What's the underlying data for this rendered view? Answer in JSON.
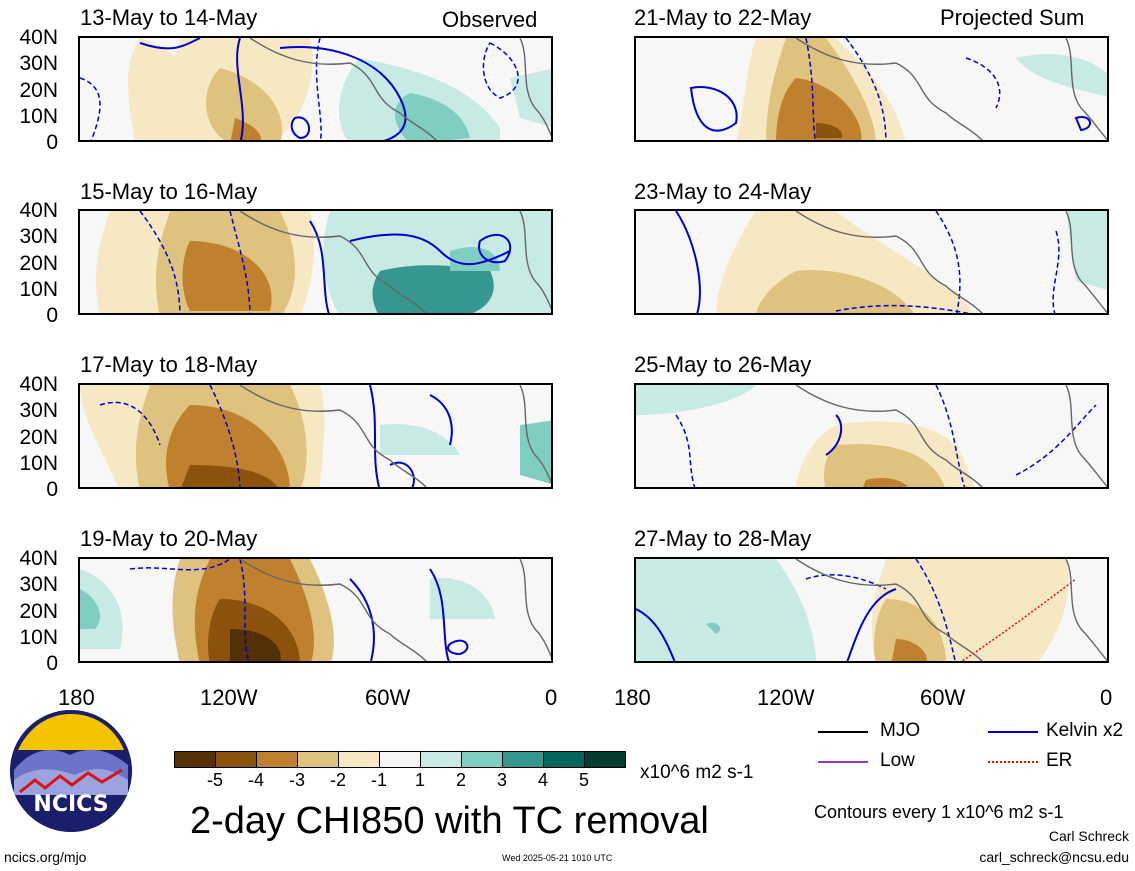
{
  "panels": [
    {
      "title": "13-May to 14-May",
      "corner": "Observed"
    },
    {
      "title": "21-May to 22-May",
      "corner": "Projected Sum"
    },
    {
      "title": "15-May to 16-May",
      "corner": ""
    },
    {
      "title": "23-May to 24-May",
      "corner": ""
    },
    {
      "title": "17-May to 18-May",
      "corner": ""
    },
    {
      "title": "25-May to 26-May",
      "corner": ""
    },
    {
      "title": "19-May to 20-May",
      "corner": ""
    },
    {
      "title": "27-May to 28-May",
      "corner": ""
    }
  ],
  "lat_labels": [
    "40N",
    "30N",
    "20N",
    "10N",
    "0"
  ],
  "lon_labels": [
    "180",
    "120W",
    "60W",
    "0"
  ],
  "colorbar": {
    "colors": [
      "#543005",
      "#8c510a",
      "#bf812d",
      "#dfc27d",
      "#f6e8c3",
      "#f5f5f5",
      "#c7eae5",
      "#80cdc1",
      "#35978f",
      "#01665e",
      "#003c30"
    ],
    "ticks": [
      "-5",
      "-4",
      "-3",
      "-2",
      "-1",
      "1",
      "2",
      "3",
      "4",
      "5"
    ],
    "units": "x10^6 m2 s-1"
  },
  "title": "2-day CHI850 with TC removal",
  "legend": [
    {
      "label": "MJO",
      "color": "#000000"
    },
    {
      "label": "Kelvin x2",
      "color": "#0000cc"
    },
    {
      "label": "Low",
      "color": "#9933cc"
    },
    {
      "label": "ER",
      "color": "#ff0000"
    }
  ],
  "contour_note": "Contours every 1 x10^6 m2 s-1",
  "author": "Carl Schreck",
  "email": "carl_schreck@ncsu.edu",
  "website": "ncics.org/mjo",
  "timestamp": "Wed 2025-05-21 1010 UTC",
  "logo_text": "NCICS"
}
